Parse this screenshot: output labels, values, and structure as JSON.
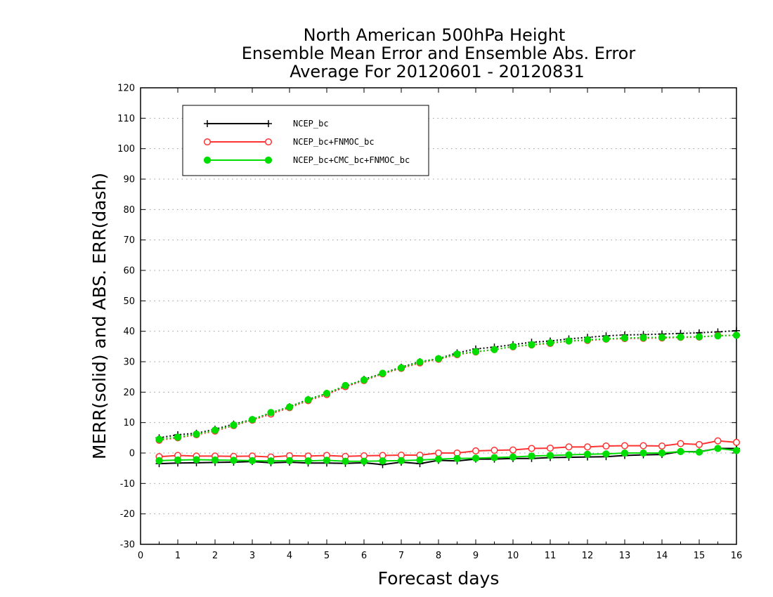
{
  "chart_data": {
    "type": "line",
    "title": [
      "North American 500hPa Height",
      "Ensemble Mean Error and Ensemble Abs. Error",
      "Average For 20120601 - 20120831"
    ],
    "xlabel": "Forecast days",
    "ylabel": "MERR(solid) and ABS. ERR(dash)",
    "xlim": [
      0,
      16
    ],
    "ylim": [
      -30,
      120
    ],
    "xticks": [
      "0",
      "1",
      "2",
      "3",
      "4",
      "5",
      "6",
      "7",
      "8",
      "9",
      "10",
      "11",
      "12",
      "13",
      "14",
      "15",
      "16"
    ],
    "yticks": [
      "-30",
      "-20",
      "-10",
      "0",
      "10",
      "20",
      "30",
      "40",
      "50",
      "60",
      "70",
      "80",
      "90",
      "100",
      "110",
      "120"
    ],
    "grid": "horizontal dotted",
    "legend_position": "top-left",
    "x": [
      0.5,
      1,
      1.5,
      2,
      2.5,
      3,
      3.5,
      4,
      4.5,
      5,
      5.5,
      6,
      6.5,
      7,
      7.5,
      8,
      8.5,
      9,
      9.5,
      10,
      10.5,
      11,
      11.5,
      12,
      12.5,
      13,
      13.5,
      14,
      14.5,
      15,
      15.5,
      16
    ],
    "series": [
      {
        "name": "NCEP_bc",
        "color": "#000000",
        "marker": "plus",
        "merr": [
          -3.5,
          -3.3,
          -3.2,
          -3.1,
          -3.0,
          -2.8,
          -3.2,
          -3.0,
          -3.3,
          -3.3,
          -3.4,
          -3.2,
          -3.8,
          -3.0,
          -3.5,
          -2.4,
          -2.6,
          -2.0,
          -2.0,
          -1.8,
          -1.8,
          -1.5,
          -1.4,
          -1.3,
          -1.2,
          -0.8,
          -0.6,
          -0.5,
          0.5,
          0.4,
          1.5,
          1.5
        ],
        "abs_err": [
          5.0,
          6.0,
          6.5,
          7.8,
          9.5,
          11.0,
          13.2,
          15.2,
          17.6,
          19.6,
          21.8,
          24.2,
          26.2,
          28.2,
          30.0,
          31.0,
          32.9,
          34.2,
          34.8,
          35.6,
          36.4,
          36.8,
          37.5,
          38.0,
          38.5,
          38.8,
          38.9,
          39.1,
          39.3,
          39.5,
          39.8,
          40.2
        ]
      },
      {
        "name": "NCEP_bc+FNMOC_bc",
        "color": "#ff3333",
        "marker": "open-circle",
        "merr": [
          -1.2,
          -0.8,
          -1.0,
          -1.0,
          -1.1,
          -1.0,
          -1.3,
          -0.9,
          -1.0,
          -0.8,
          -1.1,
          -0.9,
          -0.8,
          -0.7,
          -0.7,
          0.0,
          0.0,
          0.7,
          0.9,
          1.0,
          1.5,
          1.6,
          2.0,
          2.0,
          2.3,
          2.4,
          2.4,
          2.3,
          3.1,
          2.8,
          4.0,
          3.5
        ],
        "abs_err": [
          4.2,
          5.0,
          6.0,
          7.2,
          9.0,
          10.8,
          12.8,
          14.9,
          17.2,
          19.2,
          21.8,
          23.8,
          26.0,
          27.8,
          29.6,
          30.8,
          32.3,
          33.2,
          34.0,
          34.9,
          35.5,
          36.0,
          36.8,
          37.0,
          37.4,
          37.6,
          37.7,
          37.8,
          38.0,
          38.1,
          38.6,
          38.7
        ]
      },
      {
        "name": "NCEP_bc+CMC_bc+FNMOC_bc",
        "color": "#00dd00",
        "marker": "filled-circle",
        "merr": [
          -2.5,
          -2.3,
          -2.2,
          -2.3,
          -2.4,
          -2.5,
          -2.6,
          -2.5,
          -2.6,
          -2.4,
          -2.7,
          -2.7,
          -2.6,
          -2.5,
          -2.3,
          -2.0,
          -1.8,
          -1.7,
          -1.5,
          -1.3,
          -1.0,
          -0.8,
          -0.6,
          -0.4,
          -0.3,
          0.0,
          0.0,
          0.0,
          0.5,
          0.3,
          1.5,
          0.8
        ],
        "abs_err": [
          4.5,
          5.2,
          6.2,
          7.5,
          9.2,
          11.0,
          13.3,
          15.1,
          17.5,
          19.6,
          22.2,
          24.0,
          26.2,
          28.0,
          29.9,
          31.0,
          32.5,
          33.3,
          34.0,
          35.0,
          35.6,
          36.2,
          36.8,
          37.2,
          37.5,
          37.8,
          37.9,
          38.0,
          38.1,
          38.2,
          38.5,
          38.7
        ]
      }
    ]
  }
}
